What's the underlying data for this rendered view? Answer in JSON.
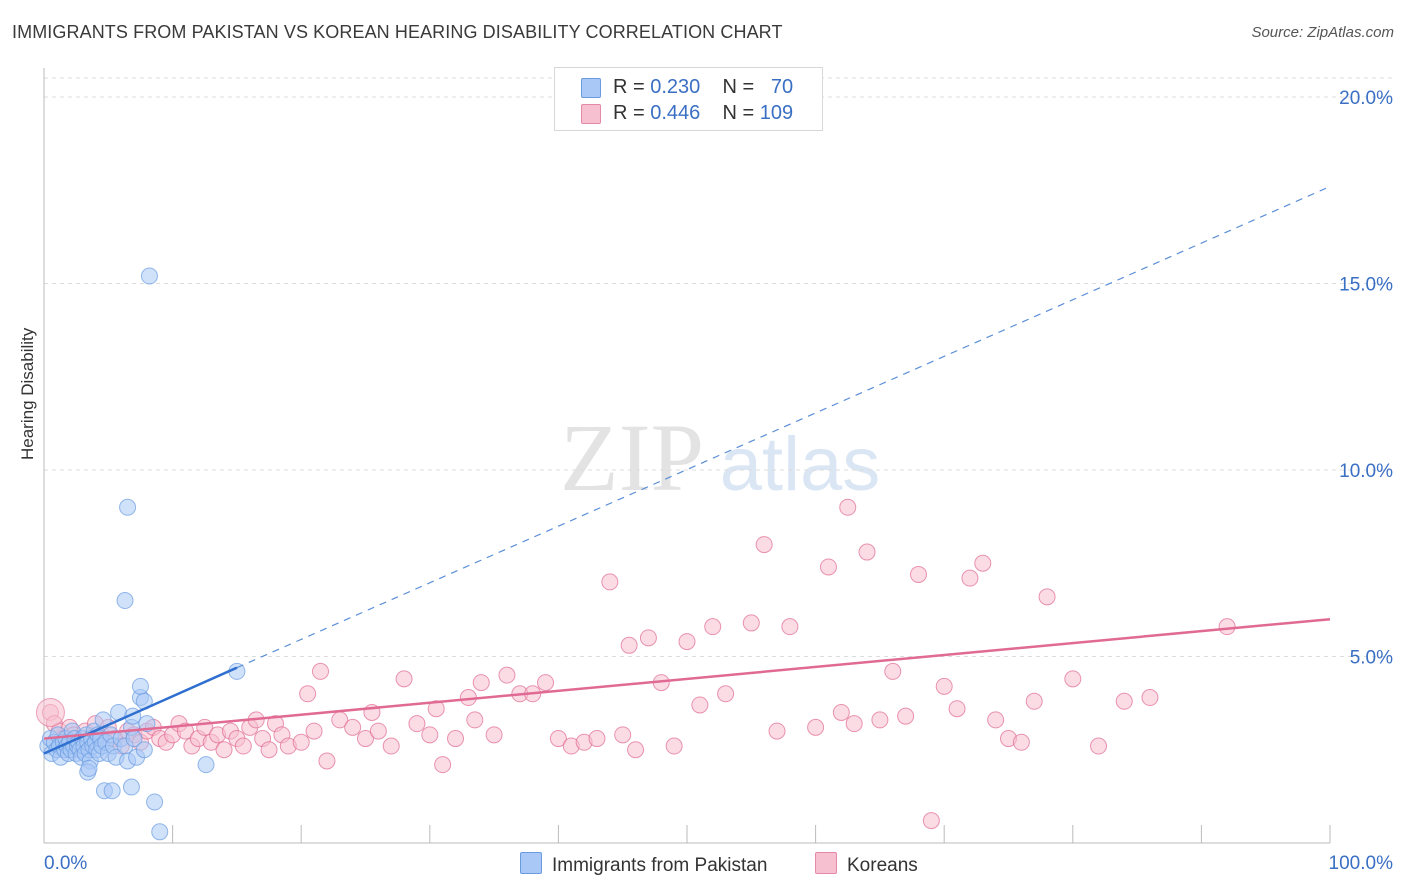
{
  "title": "IMMIGRANTS FROM PAKISTAN VS KOREAN HEARING DISABILITY CORRELATION CHART",
  "source": "Source: ZipAtlas.com",
  "watermark": {
    "zip": "ZIP",
    "atlas": "atlas"
  },
  "legend": [
    {
      "r_label": "R =",
      "r_value": "0.230",
      "n_label": "N =",
      "n_value": "70",
      "color": "#a9c8f5",
      "border": "#6a9be0"
    },
    {
      "r_label": "R =",
      "r_value": "0.446",
      "n_label": "N =",
      "n_value": "109",
      "color": "#f7c0d0",
      "border": "#e589a6"
    }
  ],
  "chart_data": {
    "type": "scatter",
    "title": "IMMIGRANTS FROM PAKISTAN VS KOREAN HEARING DISABILITY CORRELATION CHART",
    "xlabel": "",
    "ylabel": "Hearing Disability",
    "xlim": [
      0,
      100
    ],
    "ylim": [
      0,
      20.5
    ],
    "x_tick_labels": [
      "0.0%",
      "100.0%"
    ],
    "y_ticks": [
      5,
      10,
      15,
      20
    ],
    "y_tick_labels": [
      "5.0%",
      "10.0%",
      "15.0%",
      "20.0%"
    ],
    "grid": true,
    "legend_position": "top-center",
    "series": [
      {
        "name": "Immigrants from Pakistan",
        "color": "#6a9be0",
        "fill": "#a9c8f5",
        "trend": {
          "x": [
            0,
            15
          ],
          "y": [
            2.4,
            4.7
          ],
          "extended_to": [
            100,
            17.6
          ],
          "extended_style": "dashed"
        },
        "points": [
          [
            0.3,
            2.6
          ],
          [
            0.5,
            2.8
          ],
          [
            0.6,
            2.4
          ],
          [
            0.8,
            2.7
          ],
          [
            1.0,
            2.5
          ],
          [
            1.1,
            2.9
          ],
          [
            1.2,
            2.6
          ],
          [
            1.3,
            2.3
          ],
          [
            1.5,
            2.7
          ],
          [
            1.6,
            2.5
          ],
          [
            1.7,
            2.8
          ],
          [
            1.8,
            2.6
          ],
          [
            1.9,
            2.4
          ],
          [
            2.0,
            2.7
          ],
          [
            2.1,
            2.5
          ],
          [
            2.2,
            3.0
          ],
          [
            2.3,
            2.6
          ],
          [
            2.4,
            2.8
          ],
          [
            2.5,
            2.4
          ],
          [
            2.6,
            2.6
          ],
          [
            2.7,
            2.7
          ],
          [
            2.8,
            2.5
          ],
          [
            2.9,
            2.3
          ],
          [
            3.0,
            2.8
          ],
          [
            3.1,
            2.6
          ],
          [
            3.2,
            2.4
          ],
          [
            3.3,
            2.9
          ],
          [
            3.4,
            2.7
          ],
          [
            3.5,
            2.5
          ],
          [
            3.6,
            2.2
          ],
          [
            3.7,
            2.8
          ],
          [
            3.8,
            2.6
          ],
          [
            3.9,
            3.0
          ],
          [
            4.0,
            2.7
          ],
          [
            4.1,
            2.5
          ],
          [
            4.2,
            2.9
          ],
          [
            4.3,
            2.4
          ],
          [
            4.4,
            2.8
          ],
          [
            4.5,
            2.6
          ],
          [
            4.6,
            3.3
          ],
          [
            4.8,
            2.7
          ],
          [
            5.0,
            2.4
          ],
          [
            5.2,
            2.9
          ],
          [
            5.4,
            2.6
          ],
          [
            5.6,
            2.3
          ],
          [
            5.8,
            3.5
          ],
          [
            6.0,
            2.8
          ],
          [
            6.3,
            2.6
          ],
          [
            6.5,
            2.2
          ],
          [
            6.8,
            3.1
          ],
          [
            7.0,
            2.8
          ],
          [
            7.2,
            2.3
          ],
          [
            7.5,
            3.9
          ],
          [
            7.8,
            2.5
          ],
          [
            8.0,
            3.2
          ],
          [
            3.4,
            1.9
          ],
          [
            3.5,
            2.0
          ],
          [
            4.7,
            1.4
          ],
          [
            5.3,
            1.4
          ],
          [
            6.8,
            1.5
          ],
          [
            6.5,
            9.0
          ],
          [
            6.3,
            6.5
          ],
          [
            8.2,
            15.2
          ],
          [
            7.5,
            4.2
          ],
          [
            7.8,
            3.8
          ],
          [
            6.9,
            3.4
          ],
          [
            15.0,
            4.6
          ],
          [
            12.6,
            2.1
          ],
          [
            8.6,
            1.1
          ],
          [
            9.0,
            0.3
          ]
        ]
      },
      {
        "name": "Koreans",
        "color": "#e06a93",
        "fill": "#f7c0d0",
        "trend": {
          "x": [
            0,
            100
          ],
          "y": [
            2.8,
            6.0
          ]
        },
        "points": [
          [
            0.5,
            3.5
          ],
          [
            0.8,
            3.2
          ],
          [
            1.2,
            3.0
          ],
          [
            1.5,
            2.8
          ],
          [
            2.0,
            3.1
          ],
          [
            2.3,
            2.9
          ],
          [
            2.8,
            2.7
          ],
          [
            3.2,
            3.0
          ],
          [
            3.6,
            2.8
          ],
          [
            4.0,
            3.2
          ],
          [
            4.5,
            2.9
          ],
          [
            5.0,
            3.1
          ],
          [
            5.5,
            2.8
          ],
          [
            6.0,
            2.6
          ],
          [
            6.5,
            3.0
          ],
          [
            7.0,
            2.9
          ],
          [
            7.5,
            2.7
          ],
          [
            8.0,
            3.0
          ],
          [
            8.5,
            3.1
          ],
          [
            9.0,
            2.8
          ],
          [
            9.5,
            2.7
          ],
          [
            10.0,
            2.9
          ],
          [
            10.5,
            3.2
          ],
          [
            11.0,
            3.0
          ],
          [
            11.5,
            2.6
          ],
          [
            12.0,
            2.8
          ],
          [
            12.5,
            3.1
          ],
          [
            13.0,
            2.7
          ],
          [
            13.5,
            2.9
          ],
          [
            14.0,
            2.5
          ],
          [
            14.5,
            3.0
          ],
          [
            15.0,
            2.8
          ],
          [
            15.5,
            2.6
          ],
          [
            16.0,
            3.1
          ],
          [
            16.5,
            3.3
          ],
          [
            17.0,
            2.8
          ],
          [
            17.5,
            2.5
          ],
          [
            18.0,
            3.2
          ],
          [
            18.5,
            2.9
          ],
          [
            19.0,
            2.6
          ],
          [
            20.0,
            2.7
          ],
          [
            20.5,
            4.0
          ],
          [
            21.0,
            3.0
          ],
          [
            21.5,
            4.6
          ],
          [
            22.0,
            2.2
          ],
          [
            23.0,
            3.3
          ],
          [
            24.0,
            3.1
          ],
          [
            25.0,
            2.8
          ],
          [
            25.5,
            3.5
          ],
          [
            26.0,
            3.0
          ],
          [
            27.0,
            2.6
          ],
          [
            28.0,
            4.4
          ],
          [
            29.0,
            3.2
          ],
          [
            30.0,
            2.9
          ],
          [
            30.5,
            3.6
          ],
          [
            31.0,
            2.1
          ],
          [
            32.0,
            2.8
          ],
          [
            33.0,
            3.9
          ],
          [
            33.5,
            3.3
          ],
          [
            34.0,
            4.3
          ],
          [
            35.0,
            2.9
          ],
          [
            36.0,
            4.5
          ],
          [
            37.0,
            4.0
          ],
          [
            38.0,
            4.0
          ],
          [
            39.0,
            4.3
          ],
          [
            40.0,
            2.8
          ],
          [
            41.0,
            2.6
          ],
          [
            42.0,
            2.7
          ],
          [
            43.0,
            2.8
          ],
          [
            44.0,
            7.0
          ],
          [
            45.0,
            2.9
          ],
          [
            45.5,
            5.3
          ],
          [
            46.0,
            2.5
          ],
          [
            47.0,
            5.5
          ],
          [
            48.0,
            4.3
          ],
          [
            49.0,
            2.6
          ],
          [
            50.0,
            5.4
          ],
          [
            51.0,
            3.7
          ],
          [
            52.0,
            5.8
          ],
          [
            53.0,
            4.0
          ],
          [
            55.0,
            5.9
          ],
          [
            56.0,
            8.0
          ],
          [
            57.0,
            3.0
          ],
          [
            58.0,
            5.8
          ],
          [
            60.0,
            3.1
          ],
          [
            61.0,
            7.4
          ],
          [
            62.0,
            3.5
          ],
          [
            62.5,
            9.0
          ],
          [
            63.0,
            3.2
          ],
          [
            64.0,
            7.8
          ],
          [
            65.0,
            3.3
          ],
          [
            66.0,
            4.6
          ],
          [
            67.0,
            3.4
          ],
          [
            68.0,
            7.2
          ],
          [
            69.0,
            0.6
          ],
          [
            70.0,
            4.2
          ],
          [
            71.0,
            3.6
          ],
          [
            72.0,
            7.1
          ],
          [
            73.0,
            7.5
          ],
          [
            74.0,
            3.3
          ],
          [
            75.0,
            2.8
          ],
          [
            76.0,
            2.7
          ],
          [
            77.0,
            3.8
          ],
          [
            78.0,
            6.6
          ],
          [
            80.0,
            4.4
          ],
          [
            82.0,
            2.6
          ],
          [
            84.0,
            3.8
          ],
          [
            86.0,
            3.9
          ],
          [
            92.0,
            5.8
          ]
        ]
      }
    ]
  },
  "bottom_legend": [
    {
      "label": "Immigrants from Pakistan",
      "color": "#a9c8f5",
      "border": "#6a9be0"
    },
    {
      "label": "Koreans",
      "color": "#f7c0d0",
      "border": "#e589a6"
    }
  ]
}
